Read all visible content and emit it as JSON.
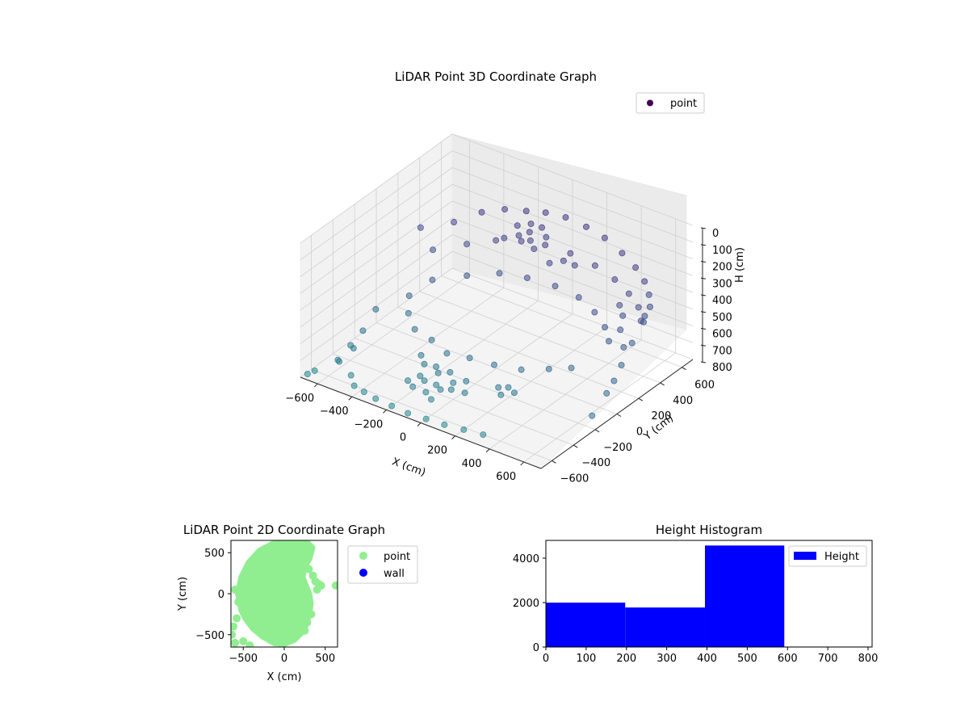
{
  "chart_data": [
    {
      "type": "scatter3d",
      "title": "LiDAR Point 3D Coordinate Graph",
      "xlabel": "X (cm)",
      "ylabel": "Y (cm)",
      "zlabel": "H (cm)",
      "x_ticks": [
        "−600",
        "−400",
        "−200",
        "0",
        "200",
        "400",
        "600"
      ],
      "y_ticks": [
        "−600",
        "−400",
        "−200",
        "0",
        "200",
        "400",
        "600"
      ],
      "z_ticks": [
        "0",
        "100",
        "200",
        "300",
        "400",
        "500",
        "600",
        "700",
        "800"
      ],
      "xlim": [
        -700,
        700
      ],
      "ylim": [
        -700,
        700
      ],
      "zlim": [
        0,
        800
      ],
      "z_inverted": true,
      "legend": {
        "labels": [
          "point"
        ],
        "placement": "upper right"
      },
      "grid": true,
      "colors": {
        "point": "#440154"
      },
      "series": [
        {
          "name": "point",
          "cmap": "viridis",
          "points": [
            [
              -600,
              250,
              310
            ],
            [
              -520,
              430,
              330
            ],
            [
              -440,
              560,
              300
            ],
            [
              -350,
              630,
              280
            ],
            [
              -250,
              670,
              270
            ],
            [
              -150,
              690,
              250
            ],
            [
              -40,
              700,
              240
            ],
            [
              80,
              700,
              250
            ],
            [
              200,
              680,
              260
            ],
            [
              320,
              650,
              290
            ],
            [
              430,
              600,
              310
            ],
            [
              520,
              540,
              330
            ],
            [
              590,
              470,
              350
            ],
            [
              640,
              400,
              370
            ],
            [
              660,
              320,
              380
            ],
            [
              -560,
              300,
              450
            ],
            [
              -470,
              470,
              460
            ],
            [
              -370,
              580,
              450
            ],
            [
              -260,
              640,
              440
            ],
            [
              -140,
              670,
              430
            ],
            [
              0,
              680,
              430
            ],
            [
              150,
              670,
              440
            ],
            [
              290,
              630,
              450
            ],
            [
              410,
              570,
              460
            ],
            [
              510,
              500,
              470
            ],
            [
              590,
              420,
              490
            ],
            [
              -500,
              200,
              560
            ],
            [
              -400,
              360,
              570
            ],
            [
              -280,
              470,
              560
            ],
            [
              -150,
              520,
              560
            ],
            [
              0,
              540,
              560
            ],
            [
              150,
              520,
              560
            ],
            [
              280,
              460,
              570
            ],
            [
              390,
              380,
              580
            ],
            [
              470,
              290,
              590
            ],
            [
              -450,
              -100,
              600
            ],
            [
              -350,
              -200,
              610
            ],
            [
              -220,
              -250,
              600
            ],
            [
              -100,
              -300,
              610
            ],
            [
              20,
              -280,
              600
            ],
            [
              150,
              -260,
              600
            ],
            [
              270,
              -200,
              610
            ],
            [
              380,
              -120,
              600
            ],
            [
              460,
              -40,
              600
            ],
            [
              -100,
              350,
              150
            ],
            [
              -40,
              380,
              130
            ],
            [
              30,
              370,
              120
            ],
            [
              80,
              330,
              140
            ],
            [
              20,
              280,
              160
            ],
            [
              -60,
              300,
              170
            ],
            [
              -10,
              320,
              140
            ],
            [
              60,
              250,
              180
            ],
            [
              -120,
              260,
              190
            ],
            [
              150,
              250,
              230
            ],
            [
              200,
              300,
              220
            ],
            [
              240,
              340,
              250
            ],
            [
              -250,
              -300,
              680
            ],
            [
              -200,
              -350,
              690
            ],
            [
              -150,
              -320,
              700
            ],
            [
              -100,
              -380,
              690
            ],
            [
              -50,
              -350,
              680
            ],
            [
              0,
              -400,
              700
            ],
            [
              50,
              -360,
              690
            ],
            [
              -180,
              -420,
              720
            ],
            [
              -130,
              -460,
              710
            ],
            [
              -80,
              -430,
              730
            ],
            [
              -30,
              -470,
              720
            ],
            [
              20,
              -450,
              710
            ],
            [
              -220,
              -470,
              740
            ],
            [
              -90,
              -510,
              740
            ],
            [
              -40,
              -540,
              750
            ],
            [
              -160,
              -520,
              730
            ],
            [
              80,
              -420,
              720
            ],
            [
              250,
              -380,
              640
            ],
            [
              290,
              -420,
              650
            ],
            [
              330,
              -360,
              650
            ],
            [
              270,
              -320,
              660
            ],
            [
              -640,
              -100,
              650
            ],
            [
              -620,
              -250,
              700
            ],
            [
              -580,
              -400,
              720
            ],
            [
              -540,
              50,
              600
            ],
            [
              -600,
              -500,
              760
            ],
            [
              -500,
              -550,
              780
            ],
            [
              -450,
              -600,
              800
            ],
            [
              -380,
              -620,
              800
            ],
            [
              -300,
              -640,
              800
            ],
            [
              -200,
              -650,
              800
            ],
            [
              -100,
              -660,
              800
            ],
            [
              0,
              -650,
              800
            ],
            [
              100,
              -640,
              800
            ],
            [
              200,
              -620,
              800
            ],
            [
              300,
              -600,
              800
            ],
            [
              -660,
              -300,
              780
            ],
            [
              -640,
              -450,
              790
            ],
            [
              -680,
              -600,
              800
            ],
            [
              -690,
              -650,
              800
            ],
            [
              400,
              500,
              500
            ],
            [
              450,
              450,
              520
            ],
            [
              550,
              300,
              600
            ],
            [
              600,
              200,
              640
            ],
            [
              620,
              100,
              680
            ],
            [
              640,
              0,
              700
            ],
            [
              650,
              -150,
              760
            ],
            [
              480,
              380,
              560
            ],
            [
              600,
              380,
              460
            ],
            [
              630,
              250,
              520
            ]
          ]
        }
      ]
    },
    {
      "type": "scatter",
      "title": "LiDAR Point 2D Coordinate Graph",
      "xlabel": "X (cm)",
      "ylabel": "Y (cm)",
      "x_ticks": [
        "−500",
        "0",
        "500"
      ],
      "y_ticks": [
        "−500",
        "0",
        "500"
      ],
      "xlim": [
        -650,
        650
      ],
      "ylim": [
        -650,
        650
      ],
      "grid": false,
      "legend": {
        "labels": [
          "point",
          "wall"
        ],
        "placement": "outside right"
      },
      "colors": {
        "point": "#90ee90",
        "wall": "#0000ff"
      },
      "series": [
        {
          "name": "point",
          "region": {
            "outline": [
              [
                -520,
                -200
              ],
              [
                -560,
                0
              ],
              [
                -520,
                200
              ],
              [
                -430,
                380
              ],
              [
                -300,
                520
              ],
              [
                -150,
                600
              ],
              [
                0,
                640
              ],
              [
                150,
                640
              ],
              [
                280,
                620
              ],
              [
                340,
                560
              ],
              [
                300,
                420
              ],
              [
                240,
                320
              ],
              [
                220,
                200
              ],
              [
                260,
                100
              ],
              [
                300,
                0
              ],
              [
                320,
                -120
              ],
              [
                300,
                -250
              ],
              [
                260,
                -380
              ],
              [
                200,
                -480
              ],
              [
                120,
                -560
              ],
              [
                0,
                -610
              ],
              [
                -120,
                -600
              ],
              [
                -260,
                -520
              ],
              [
                -380,
                -420
              ],
              [
                -470,
                -300
              ]
            ]
          },
          "points": [
            [
              -620,
              -400
            ],
            [
              -580,
              -300
            ],
            [
              -600,
              50
            ],
            [
              -560,
              -100
            ],
            [
              -600,
              -600
            ],
            [
              -640,
              -500
            ],
            [
              -500,
              -580
            ],
            [
              -420,
              -630
            ],
            [
              250,
              -450
            ],
            [
              280,
              -350
            ],
            [
              330,
              -250
            ],
            [
              300,
              -150
            ],
            [
              380,
              150
            ],
            [
              420,
              120
            ],
            [
              450,
              100
            ],
            [
              630,
              100
            ],
            [
              400,
              50
            ],
            [
              350,
              220
            ],
            [
              300,
              300
            ]
          ]
        },
        {
          "name": "wall",
          "points": []
        }
      ]
    },
    {
      "type": "bar",
      "title": "Height Histogram",
      "xlabel": "",
      "ylabel": "",
      "x_ticks": [
        "0",
        "100",
        "200",
        "300",
        "400",
        "500",
        "600",
        "700",
        "800"
      ],
      "y_ticks": [
        "0",
        "2000",
        "4000"
      ],
      "xlim": [
        0,
        810
      ],
      "ylim": [
        0,
        4800
      ],
      "grid": false,
      "legend": {
        "labels": [
          "Height"
        ],
        "placement": "upper right"
      },
      "colors": {
        "Height": "#0000ff"
      },
      "series": [
        {
          "name": "Height",
          "bins": [
            {
              "start": 0,
              "end": 197,
              "count": 2000
            },
            {
              "start": 197,
              "end": 395,
              "count": 1780
            },
            {
              "start": 395,
              "end": 592,
              "count": 4570
            },
            {
              "start": 592,
              "end": 810,
              "count": 20
            }
          ]
        }
      ]
    }
  ]
}
